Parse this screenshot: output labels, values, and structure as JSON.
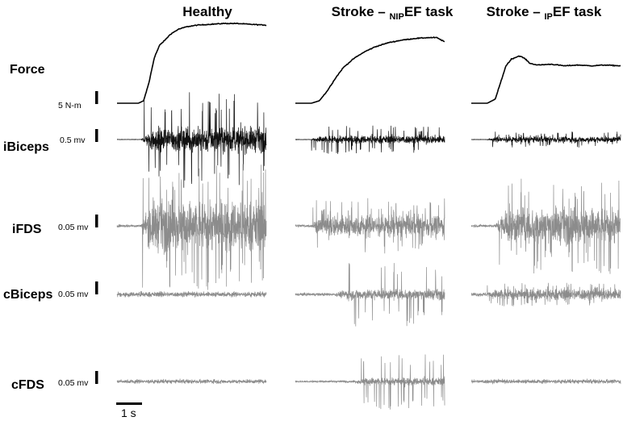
{
  "chart_data": {
    "type": "line",
    "columns": [
      {
        "id": "healthy",
        "title": "Healthy"
      },
      {
        "id": "nipef",
        "title_main": "Stroke – ",
        "title_sub": "NIP",
        "title_tail": "EF task"
      },
      {
        "id": "ipef",
        "title_main": "Stroke – ",
        "title_sub": "IP",
        "title_tail": "EF task"
      }
    ],
    "rows": [
      {
        "id": "force",
        "label": "Force",
        "scale_label": "5 N-m"
      },
      {
        "id": "ibiceps",
        "label": "iBiceps",
        "scale_label": "0.5 mv"
      },
      {
        "id": "ifds",
        "label": "iFDS",
        "scale_label": "0.05 mv"
      },
      {
        "id": "cbiceps",
        "label": "cBiceps",
        "scale_label": "0.05 mv"
      },
      {
        "id": "cfds",
        "label": "cFDS",
        "scale_label": "0.05 mv"
      }
    ],
    "time_scale_label": "1 s",
    "time_scale_seconds": 1,
    "trace_duration_s": 5.6,
    "force_traces_nm": {
      "healthy": {
        "t": [
          0,
          0.8,
          1.0,
          1.2,
          1.4,
          1.6,
          1.8,
          2.0,
          2.3,
          2.6,
          3.0,
          3.5,
          4.0,
          4.5,
          5.0,
          5.6
        ],
        "y": [
          0,
          0,
          0.3,
          2.5,
          5.5,
          7.0,
          7.6,
          8.3,
          8.9,
          9.2,
          9.4,
          9.5,
          9.6,
          9.6,
          9.5,
          9.4
        ]
      },
      "nipef": {
        "t": [
          0,
          0.6,
          0.9,
          1.2,
          1.5,
          1.8,
          2.2,
          2.6,
          3.0,
          3.5,
          4.0,
          4.5,
          5.0,
          5.3,
          5.6
        ],
        "y": [
          0,
          0,
          0.3,
          1.5,
          3.0,
          4.3,
          5.4,
          6.2,
          6.8,
          7.3,
          7.6,
          7.8,
          7.9,
          7.9,
          7.4
        ]
      },
      "ipef": {
        "t": [
          0,
          0.6,
          0.9,
          1.1,
          1.3,
          1.5,
          1.8,
          2.0,
          2.2,
          2.5,
          3.0,
          3.5,
          4.0,
          4.5,
          5.0,
          5.6
        ],
        "y": [
          0,
          0,
          0.5,
          2.5,
          4.5,
          5.3,
          5.7,
          5.4,
          4.8,
          4.6,
          4.7,
          4.5,
          4.6,
          4.5,
          4.6,
          4.5
        ]
      }
    },
    "emg_envelopes_mv": {
      "ibiceps": {
        "healthy": {
          "onset_s": 0.9,
          "baseline": 0.004,
          "amp": 0.25,
          "spike": 0.6
        },
        "nipef": {
          "onset_s": 0.6,
          "baseline": 0.004,
          "amp": 0.08,
          "spike": 0.18
        },
        "ipef": {
          "onset_s": 0.6,
          "baseline": 0.004,
          "amp": 0.06,
          "spike": 0.1
        }
      },
      "ifds": {
        "healthy": {
          "onset_s": 0.9,
          "baseline": 0.003,
          "amp": 0.05,
          "spike": 0.08
        },
        "nipef": {
          "onset_s": 0.6,
          "baseline": 0.003,
          "amp": 0.02,
          "spike": 0.035
        },
        "ipef": {
          "onset_s": 0.9,
          "baseline": 0.003,
          "amp": 0.035,
          "spike": 0.06
        }
      },
      "cbiceps": {
        "healthy": {
          "onset_s": 0.0,
          "baseline": 0.002,
          "amp": 0.003,
          "spike": 0.004
        },
        "nipef": {
          "onset_s": 1.5,
          "baseline": 0.003,
          "amp": 0.008,
          "spike": 0.04
        },
        "ipef": {
          "onset_s": 0.6,
          "baseline": 0.004,
          "amp": 0.008,
          "spike": 0.015
        }
      },
      "cfds": {
        "healthy": {
          "onset_s": 0.0,
          "baseline": 0.002,
          "amp": 0.002,
          "spike": 0.003
        },
        "nipef": {
          "onset_s": 2.2,
          "baseline": 0.002,
          "amp": 0.006,
          "spike": 0.035
        },
        "ipef": {
          "onset_s": 0.0,
          "baseline": 0.002,
          "amp": 0.002,
          "spike": 0.003
        }
      }
    },
    "colors": {
      "force": "#000000",
      "ibiceps": "#111111",
      "emg": "#8c8c8c",
      "scale_bar": "#000000"
    }
  }
}
